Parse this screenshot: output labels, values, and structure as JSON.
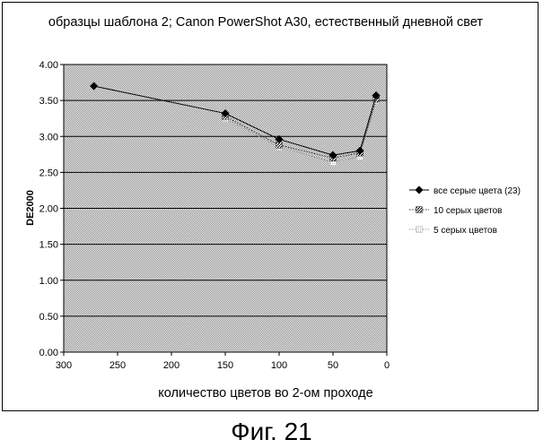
{
  "chart_data": {
    "type": "line",
    "title": "образцы шаблона 2; Canon PowerShot A30, естественный дневной свет",
    "xlabel": "количество цветов во 2-ом проходе",
    "ylabel": "DE2000",
    "xlim": [
      300,
      0
    ],
    "ylim": [
      0,
      4
    ],
    "x_reversed": true,
    "x_ticks": [
      "300",
      "250",
      "200",
      "150",
      "100",
      "50",
      "0"
    ],
    "y_ticks": [
      "0.00",
      "0.50",
      "1.00",
      "1.50",
      "2.00",
      "2.50",
      "3.00",
      "3.50",
      "4.00"
    ],
    "grid": true,
    "legend_position": "right",
    "plot_background": "dotted grey",
    "series": [
      {
        "name": "все серые цвета (23)",
        "marker": "diamond",
        "line_style": "solid",
        "color": "#000000",
        "points": [
          [
            272,
            3.7
          ],
          [
            150,
            3.32
          ],
          [
            100,
            2.96
          ],
          [
            50,
            2.74
          ],
          [
            25,
            2.8
          ],
          [
            10,
            3.57
          ]
        ]
      },
      {
        "name": "10 серых цветов",
        "marker": "hatched-square",
        "line_style": "dotted",
        "color": "#333333",
        "points": [
          [
            150,
            3.28
          ],
          [
            100,
            2.88
          ],
          [
            50,
            2.7
          ],
          [
            25,
            2.77
          ],
          [
            10,
            3.52
          ]
        ]
      },
      {
        "name": "5 серых цветов",
        "marker": "light-dotted-square",
        "line_style": "dotted",
        "color": "#999999",
        "points": [
          [
            150,
            3.25
          ],
          [
            100,
            2.85
          ],
          [
            50,
            2.64
          ],
          [
            25,
            2.72
          ],
          [
            10,
            3.5
          ]
        ]
      }
    ]
  },
  "caption": "Фиг. 21"
}
